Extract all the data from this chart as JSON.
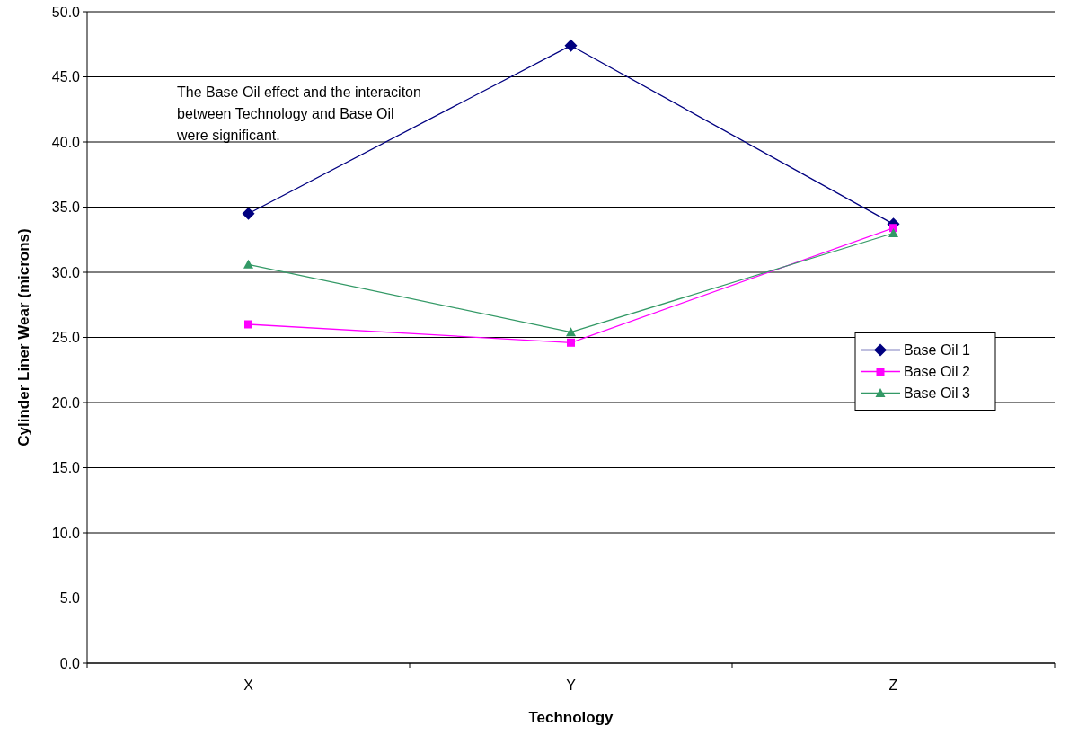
{
  "chart_data": {
    "type": "line",
    "xlabel": "Technology",
    "ylabel": "Cylinder Liner Wear (microns)",
    "categories": [
      "X",
      "Y",
      "Z"
    ],
    "series": [
      {
        "name": "Base Oil 1",
        "color": "#000080",
        "marker": "diamond",
        "values": [
          34.5,
          47.4,
          33.7
        ]
      },
      {
        "name": "Base Oil 2",
        "color": "#ff00ff",
        "marker": "square",
        "values": [
          26.0,
          24.6,
          33.4
        ]
      },
      {
        "name": "Base Oil 3",
        "color": "#339966",
        "marker": "triangle",
        "values": [
          30.6,
          25.4,
          33.0
        ]
      }
    ],
    "ylim": [
      0,
      50
    ],
    "yticks": [
      {
        "value": 0,
        "label": "0.0"
      },
      {
        "value": 5,
        "label": "5.0"
      },
      {
        "value": 10,
        "label": "10.0"
      },
      {
        "value": 15,
        "label": "15.0"
      },
      {
        "value": 20,
        "label": "20.0"
      },
      {
        "value": 25,
        "label": "25.0"
      },
      {
        "value": 30,
        "label": "30.0"
      },
      {
        "value": 35,
        "label": "35.0"
      },
      {
        "value": 40,
        "label": "40.0"
      },
      {
        "value": 45,
        "label": "45.0"
      },
      {
        "value": 50,
        "label": "50.0"
      }
    ],
    "grid": "y",
    "legend": "right",
    "line_style": "solid",
    "annotations": [
      "The Base Oil effect and the interaciton\nbetween Technology and Base Oil\nwere significant."
    ]
  }
}
